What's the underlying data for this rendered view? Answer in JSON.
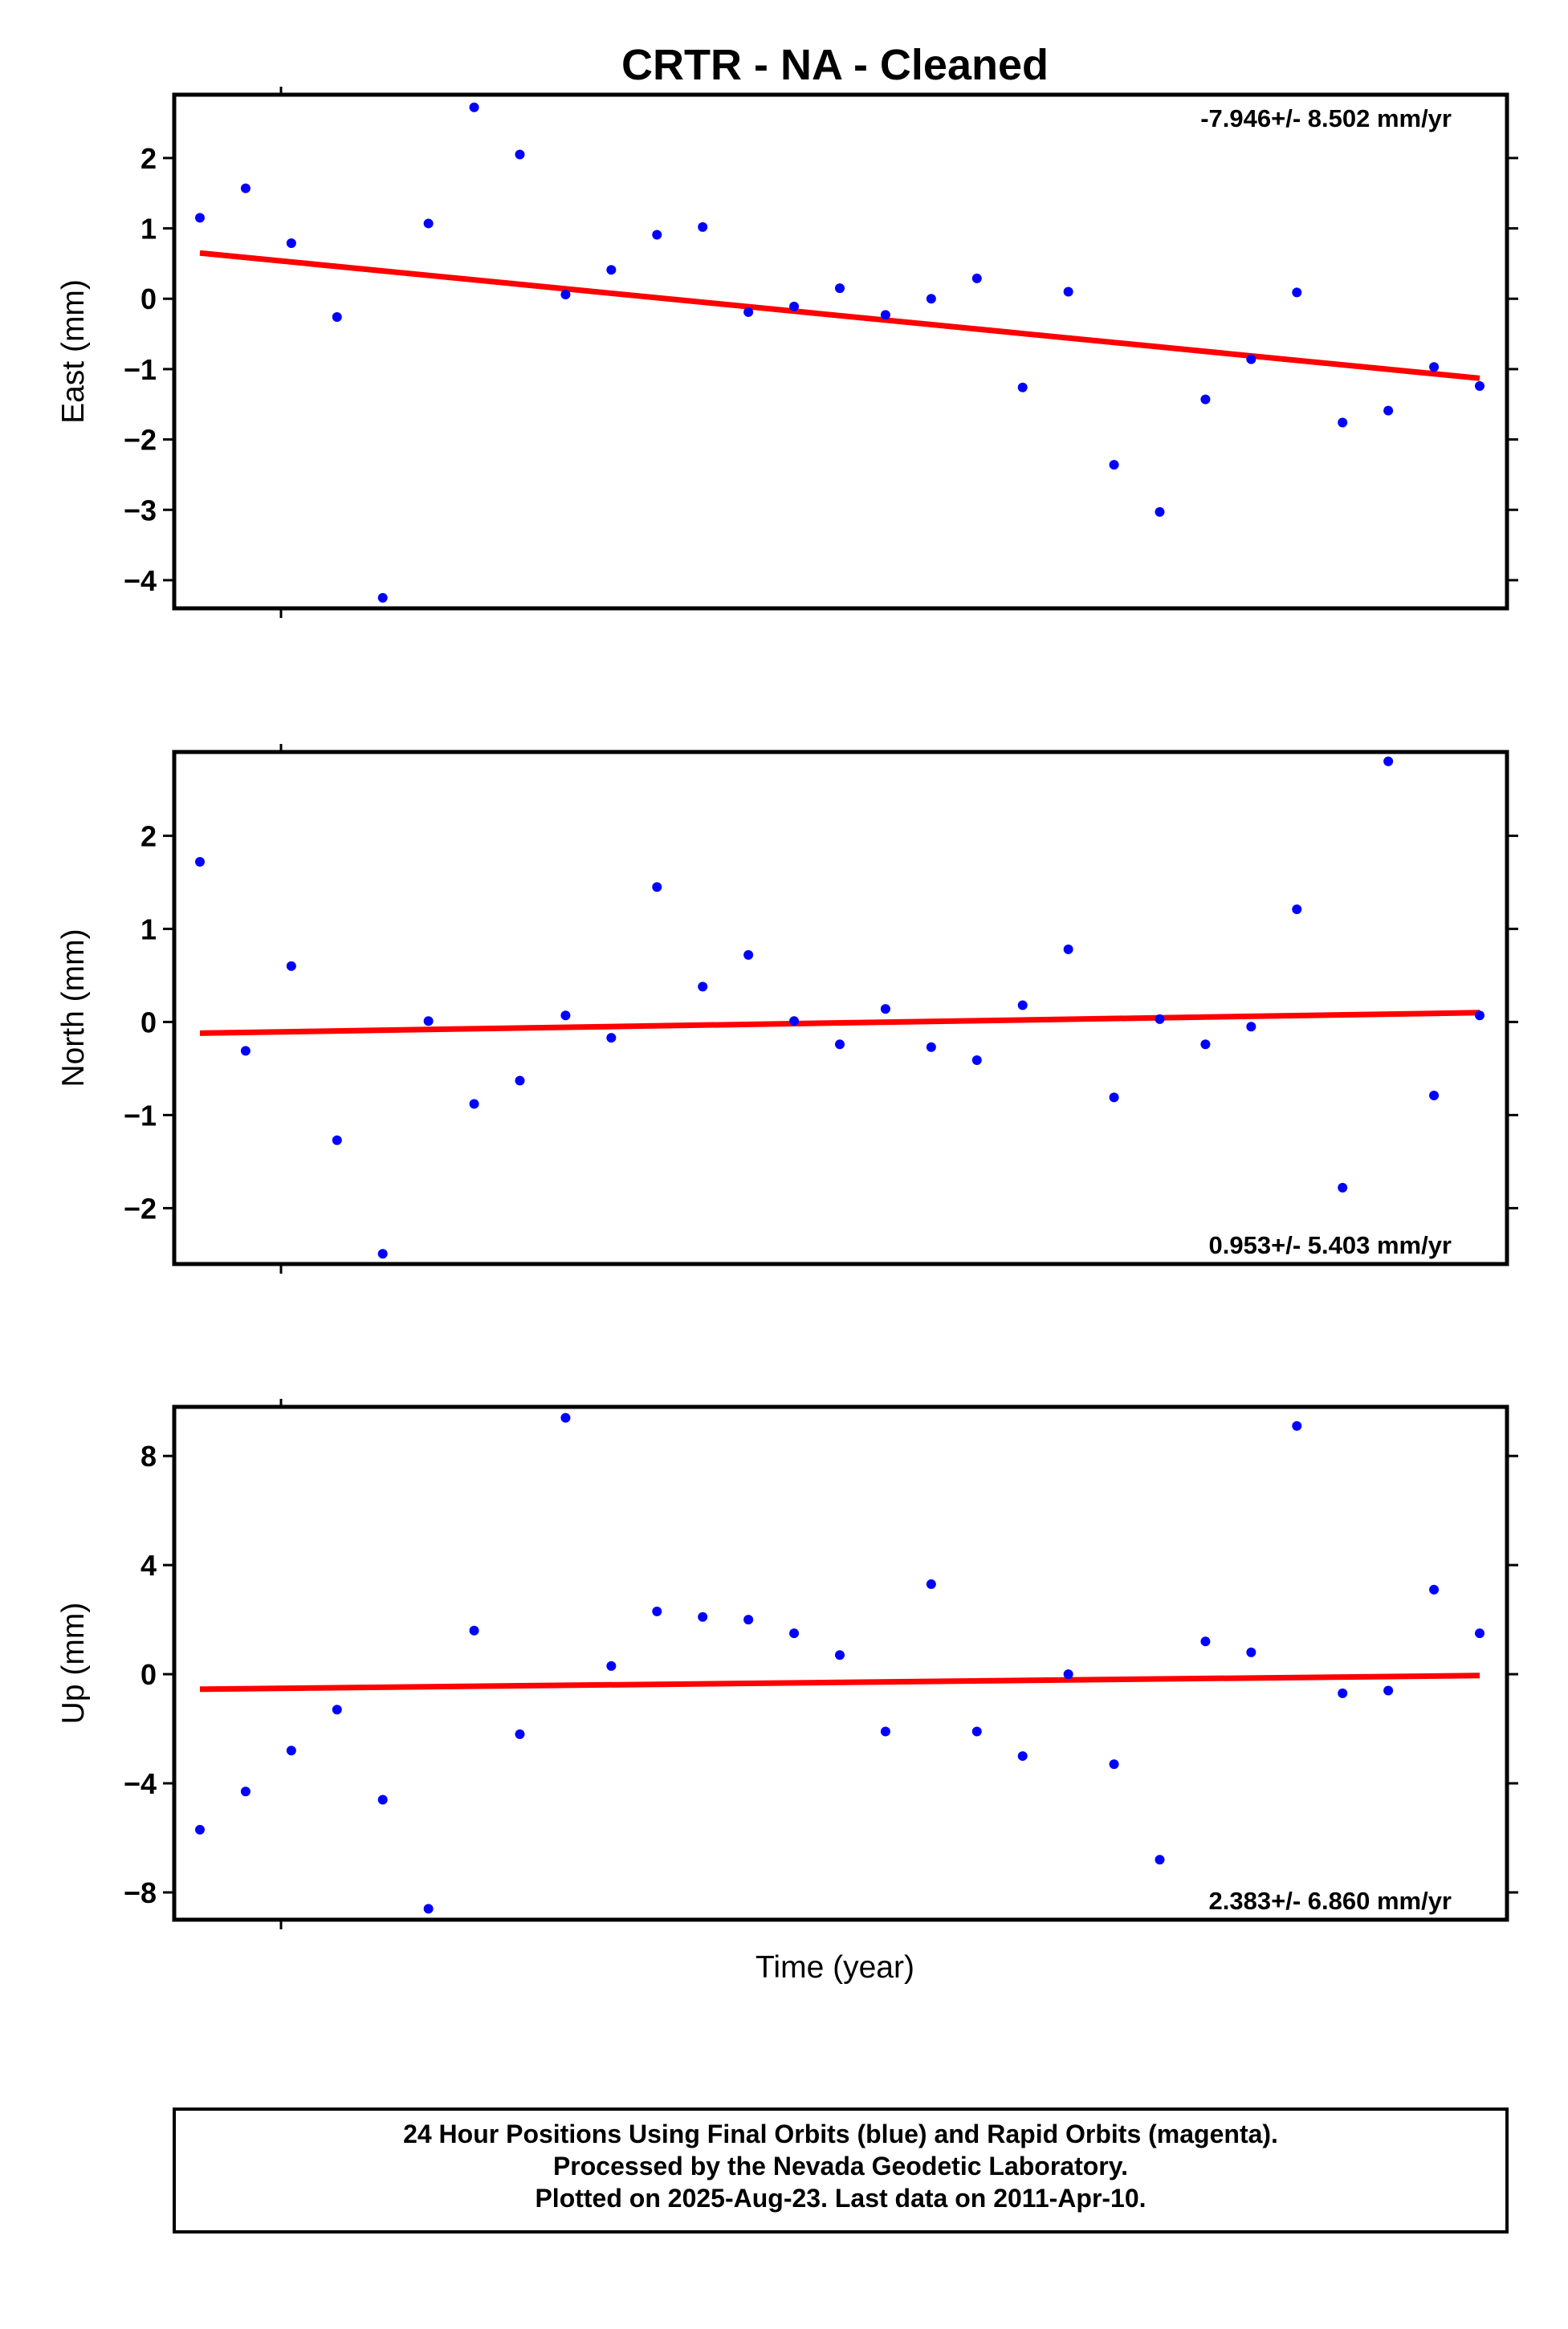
{
  "title": "CRTR  - NA - Cleaned",
  "colors": {
    "points": "#0000ff",
    "trend": "#ff0000",
    "frame": "#000000"
  },
  "xlabel": "Time (year)",
  "footer": {
    "lines": [
      "24 Hour Positions Using Final Orbits (blue) and Rapid Orbits (magenta).",
      "Processed by the Nevada Geodetic Laboratory.",
      "Plotted on 2025-Aug-23. Last data on 2011-Apr-10."
    ]
  },
  "chart_data": [
    {
      "type": "scatter",
      "ylabel": "East (mm)",
      "rate": "-7.946+/- 8.502 mm/yr",
      "rate_position": "top-right",
      "ylim": [
        -4.4,
        2.9
      ],
      "yticks": [
        2,
        1,
        0,
        -1,
        -2,
        -3,
        -4
      ],
      "ytick_labels": [
        "2",
        "1",
        "0",
        "−1",
        "−2",
        "−3",
        "−4"
      ],
      "y": [
        1.15,
        1.57,
        0.79,
        -0.26,
        -4.25,
        1.07,
        2.72,
        2.05,
        0.06,
        0.41,
        0.91,
        1.02,
        -0.19,
        -0.11,
        0.15,
        -0.23,
        0.0,
        0.29,
        -1.26,
        0.1,
        -2.36,
        -3.03,
        -1.43,
        -0.86,
        0.09,
        -1.76,
        -1.59,
        -0.97,
        -1.24
      ],
      "trend": [
        0.65,
        -1.13
      ]
    },
    {
      "type": "scatter",
      "ylabel": "North (mm)",
      "rate": "0.953+/- 5.403 mm/yr",
      "rate_position": "bottom-right",
      "ylim": [
        -2.6,
        2.9
      ],
      "yticks": [
        2,
        1,
        0,
        -1,
        -2
      ],
      "ytick_labels": [
        "2",
        "1",
        "0",
        "−1",
        "−2"
      ],
      "y": [
        1.72,
        -0.31,
        0.6,
        -1.27,
        -2.49,
        0.01,
        -0.88,
        -0.63,
        0.07,
        -0.17,
        1.45,
        0.38,
        0.72,
        0.01,
        -0.24,
        0.14,
        -0.27,
        -0.41,
        0.18,
        0.78,
        -0.81,
        0.03,
        -0.24,
        -0.05,
        1.21,
        -1.78,
        2.8,
        -0.79,
        0.07
      ],
      "trend": [
        -0.12,
        0.1
      ]
    },
    {
      "type": "scatter",
      "ylabel": "Up (mm)",
      "rate": "2.383+/- 6.860 mm/yr",
      "rate_position": "bottom-right",
      "ylim": [
        -9.0,
        9.8
      ],
      "yticks": [
        8,
        4,
        0,
        -4,
        -8
      ],
      "ytick_labels": [
        "8",
        "4",
        "0",
        "−4",
        "−8"
      ],
      "y": [
        -5.7,
        -4.3,
        -2.8,
        -1.3,
        -4.6,
        -8.6,
        1.6,
        -2.2,
        9.4,
        0.3,
        2.3,
        2.1,
        2.0,
        1.5,
        0.7,
        -2.1,
        3.3,
        -2.1,
        -3.0,
        0.0,
        -3.3,
        -6.8,
        1.2,
        0.8,
        9.1,
        -0.7,
        -0.6,
        3.1,
        1.5
      ],
      "trend": [
        -0.55,
        -0.05
      ]
    }
  ]
}
